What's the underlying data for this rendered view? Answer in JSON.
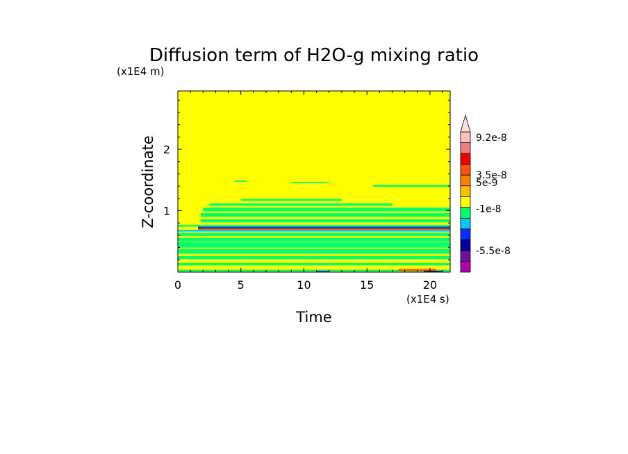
{
  "chart_data": {
    "type": "heatmap",
    "title": "Diffusion term of H2O-g mixing ratio",
    "xlabel": "Time",
    "ylabel": "Z-coordinate",
    "x_unit": "(x1E4 s)",
    "y_unit": "(x1E4 m)",
    "xlim": [
      0,
      21.6
    ],
    "ylim": [
      0,
      2.95
    ],
    "x_ticks": [
      0,
      5,
      10,
      15,
      20
    ],
    "y_ticks": [
      1,
      2
    ],
    "x_tick_labels": [
      "0",
      "5",
      "10",
      "15",
      "20"
    ],
    "y_tick_labels": [
      "1",
      "2"
    ],
    "background_color": "#ffff00",
    "colorbar": {
      "levels": [
        {
          "color": "#b000b0"
        },
        {
          "color": "#7010a0"
        },
        {
          "color": "#0000a0"
        },
        {
          "color": "#0030ff"
        },
        {
          "color": "#00c8ff"
        },
        {
          "color": "#00ff70"
        },
        {
          "color": "#ffff00"
        },
        {
          "color": "#ffc000"
        },
        {
          "color": "#ff8000"
        },
        {
          "color": "#ff5010"
        },
        {
          "color": "#ee0000"
        },
        {
          "color": "#f08080"
        },
        {
          "color": "#ffc0c0"
        },
        {
          "color": "#ffe0e0"
        }
      ],
      "labels": [
        "9.2e-8",
        "3.5e-8",
        "5e-9",
        "-1e-8",
        "-5.5e-8"
      ],
      "label_values": [
        9.2e-08,
        3.5e-08,
        5e-09,
        -1e-08,
        -5.5e-08
      ]
    },
    "bands": [
      {
        "t0": 0,
        "t1": 21.6,
        "z0": 0.01,
        "z1": 0.04,
        "color": "#00ff70"
      },
      {
        "t0": 0,
        "t1": 21.6,
        "z0": 0.11,
        "z1": 0.15,
        "color": "#00ff70"
      },
      {
        "t0": 0,
        "t1": 21.6,
        "z0": 0.21,
        "z1": 0.26,
        "color": "#00ff70"
      },
      {
        "t0": 0,
        "t1": 21.6,
        "z0": 0.3,
        "z1": 0.38,
        "color": "#00ff70"
      },
      {
        "t0": 0,
        "t1": 21.6,
        "z0": 0.4,
        "z1": 0.49,
        "color": "#00ff70"
      },
      {
        "t0": 0,
        "t1": 21.6,
        "z0": 0.5,
        "z1": 0.56,
        "color": "#00ff70"
      },
      {
        "t0": 0,
        "t1": 21.6,
        "z0": 0.59,
        "z1": 0.64,
        "color": "#00ff70"
      },
      {
        "t0": 0,
        "t1": 21.6,
        "z0": 0.66,
        "z1": 0.69,
        "color": "#00c8ff"
      },
      {
        "t0": 1.6,
        "t1": 21.6,
        "z0": 0.69,
        "z1": 0.71,
        "color": "#ff5010"
      },
      {
        "t0": 1.6,
        "t1": 21.6,
        "z0": 0.71,
        "z1": 0.725,
        "color": "#0000a0"
      },
      {
        "t0": 1.6,
        "t1": 21.6,
        "z0": 0.725,
        "z1": 0.74,
        "color": "#0030ff"
      },
      {
        "t0": 0,
        "t1": 21.6,
        "z0": 0.74,
        "z1": 0.77,
        "color": "#00ff70"
      },
      {
        "t0": 1.8,
        "t1": 21.6,
        "z0": 0.81,
        "z1": 0.86,
        "color": "#00ff70"
      },
      {
        "t0": 1.8,
        "t1": 21.6,
        "z0": 0.9,
        "z1": 0.96,
        "color": "#00ff70"
      },
      {
        "t0": 2.0,
        "t1": 21.6,
        "z0": 0.99,
        "z1": 1.05,
        "color": "#00ff70"
      },
      {
        "t0": 2.5,
        "t1": 17.0,
        "z0": 1.08,
        "z1": 1.12,
        "color": "#00ff70"
      },
      {
        "t0": 5.0,
        "t1": 13.0,
        "z0": 1.16,
        "z1": 1.19,
        "color": "#00ff70"
      },
      {
        "t0": 15.5,
        "t1": 21.6,
        "z0": 1.39,
        "z1": 1.42,
        "color": "#00ff70"
      },
      {
        "t0": 9.0,
        "t1": 12.0,
        "z0": 1.45,
        "z1": 1.47,
        "color": "#00ff70"
      },
      {
        "t0": 4.5,
        "t1": 5.5,
        "z0": 1.47,
        "z1": 1.49,
        "color": "#00ff70"
      },
      {
        "t0": 17.5,
        "t1": 20.5,
        "z0": 0.02,
        "z1": 0.05,
        "color": "#ff5010"
      },
      {
        "t0": 11.0,
        "t1": 12.0,
        "z0": 0.0,
        "z1": 0.02,
        "color": "#0030ff"
      },
      {
        "t0": 19.5,
        "t1": 21.0,
        "z0": 0.0,
        "z1": 0.02,
        "color": "#0000a0"
      }
    ]
  }
}
